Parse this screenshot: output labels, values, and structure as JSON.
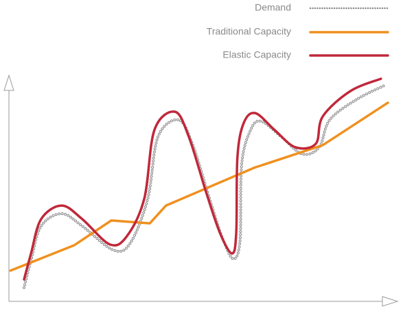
{
  "chart_data": {
    "type": "line",
    "xlim": [
      0,
      100
    ],
    "ylim": [
      0,
      100
    ],
    "legend": "top-right",
    "series": [
      {
        "name": "Demand",
        "color": "#8a8a8a",
        "style": "dotted",
        "smooth": true,
        "x": [
          3.9,
          5.7,
          8.3,
          13.6,
          18.9,
          26.9,
          31.3,
          35.8,
          38.4,
          43.7,
          47.3,
          51.7,
          55.2,
          57.9,
          59.6,
          60.0,
          62.3,
          65.0,
          70.3,
          75.6,
          80.0,
          82.7,
          89.7,
          96.8
        ],
        "values": [
          6.1,
          18.2,
          33.3,
          38.8,
          33.3,
          22.7,
          25.8,
          45.5,
          72.7,
          80.3,
          69.7,
          45.5,
          27.3,
          18.8,
          27.3,
          60.6,
          75.8,
          79.7,
          72.7,
          65.2,
          68.2,
          80.3,
          89.4,
          95.5
        ]
      },
      {
        "name": "Traditional Capacity",
        "color": "#f0901e",
        "style": "solid",
        "smooth": false,
        "x": [
          0.4,
          16.8,
          26.4,
          36.3,
          40.5,
          63.2,
          80.9,
          97.7
        ],
        "values": [
          13.6,
          24.8,
          35.8,
          34.5,
          42.4,
          59.1,
          69.1,
          87.9
        ]
      },
      {
        "name": "Elastic Capacity",
        "color": "#c0283a",
        "style": "solid",
        "smooth": true,
        "x": [
          3.9,
          5.7,
          8.3,
          13.6,
          18.9,
          26.0,
          30.4,
          34.9,
          37.5,
          42.8,
          46.4,
          50.8,
          54.4,
          57.5,
          58.6,
          58.9,
          60.5,
          63.5,
          68.5,
          73.8,
          79.1,
          80.9,
          88.0,
          95.9
        ],
        "values": [
          9.7,
          21.2,
          36.4,
          42.4,
          36.4,
          25.2,
          28.8,
          45.5,
          75.8,
          83.9,
          72.7,
          48.5,
          30.3,
          21.2,
          30.3,
          63.6,
          78.8,
          83.3,
          75.8,
          68.2,
          69.7,
          81.8,
          93.0,
          98.5
        ]
      }
    ]
  }
}
